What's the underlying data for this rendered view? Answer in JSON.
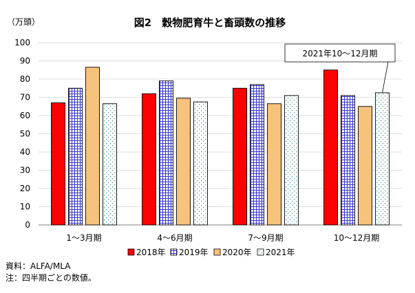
{
  "chart_data": {
    "type": "bar",
    "title": "図2　穀物肥育牛と畜頭数の推移",
    "unit_label": "（万頭）",
    "categories": [
      "1～3月期",
      "4～6月期",
      "7～9月期",
      "10～12月期"
    ],
    "series": [
      {
        "name": "2018年",
        "values": [
          67,
          72,
          75,
          85
        ],
        "color": "#ff0000",
        "pattern": "solid"
      },
      {
        "name": "2019年",
        "values": [
          75,
          79,
          77,
          71
        ],
        "color": "#3333cc",
        "pattern": "grid"
      },
      {
        "name": "2020年",
        "values": [
          86.5,
          69.5,
          66.5,
          65
        ],
        "color": "#f7c27c",
        "pattern": "solid"
      },
      {
        "name": "2021年",
        "values": [
          66.5,
          67.5,
          71,
          72.5
        ],
        "color": "#2e8b8b",
        "pattern": "dots"
      }
    ],
    "ylim": [
      0,
      100
    ],
    "yticks": [
      0,
      10,
      20,
      30,
      40,
      50,
      60,
      70,
      80,
      90,
      100
    ],
    "grid": true,
    "legend_position": "bottom",
    "annotation": "2021年10～12月期"
  },
  "notes": {
    "source": "資料：ALFA/MLA",
    "note": "注：四半期ごとの数値。"
  }
}
